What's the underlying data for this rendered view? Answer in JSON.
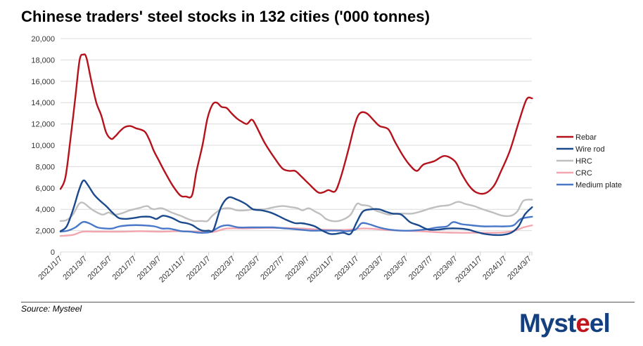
{
  "chart_data": {
    "type": "line",
    "title": "Chinese traders' steel stocks in 132 cities ('000 tonnes)",
    "xlabel": "",
    "ylabel": "",
    "ylim": [
      0,
      20000
    ],
    "yticks": [
      "0",
      "2,000",
      "4,000",
      "6,000",
      "8,000",
      "10,000",
      "12,000",
      "14,000",
      "16,000",
      "18,000",
      "20,000"
    ],
    "ytick_values": [
      0,
      2000,
      4000,
      6000,
      8000,
      10000,
      12000,
      14000,
      16000,
      18000,
      20000
    ],
    "xticks": [
      "2021/1/7",
      "2021/3/7",
      "2021/5/7",
      "2021/7/7",
      "2021/9/7",
      "2021/11/7",
      "2022/1/7",
      "2022/3/7",
      "2022/5/7",
      "2022/7/7",
      "2022/9/7",
      "2022/11/7",
      "2023/1/7",
      "2023/3/7",
      "2023/5/7",
      "2023/7/7",
      "2023/9/7",
      "2023/11/7",
      "2024/1/7",
      "2024/3/7"
    ],
    "x_axis_note": "x values expressed as months since 2021/1/7 (0 = 2021/1/7, 38 = 2024/3/7)",
    "x_range": [
      0,
      38.2
    ],
    "grid": true,
    "legend_position": "right",
    "series": [
      {
        "name": "Rebar",
        "color": "#b5121b",
        "x": [
          0,
          0.4,
          0.8,
          1.2,
          1.55,
          1.85,
          2.1,
          2.5,
          2.9,
          3.3,
          3.7,
          4.1,
          4.4,
          4.8,
          5.2,
          5.65,
          6.1,
          6.8,
          7.2,
          7.55,
          8.0,
          8.45,
          9.1,
          9.7,
          10.15,
          10.65,
          11.0,
          11.5,
          11.9,
          12.3,
          12.65,
          13.05,
          13.45,
          13.85,
          14.3,
          14.7,
          15.1,
          15.5,
          15.85,
          16.55,
          17.4,
          18.0,
          18.55,
          19.0,
          19.4,
          20.1,
          20.85,
          21.3,
          21.7,
          22.25,
          22.7,
          23.3,
          23.85,
          24.25,
          24.8,
          25.4,
          25.85,
          26.55,
          27.1,
          27.7,
          28.25,
          28.85,
          29.4,
          30.25,
          31.1,
          31.95,
          32.5,
          33.1,
          33.65,
          34.4,
          35.1,
          35.65,
          36.4,
          37.15,
          37.75,
          38.2
        ],
        "values": [
          5900,
          7000,
          10500,
          14500,
          18000,
          18500,
          18200,
          16000,
          14000,
          12800,
          11200,
          10600,
          10800,
          11300,
          11700,
          11800,
          11600,
          11300,
          10500,
          9500,
          8500,
          7500,
          6200,
          5300,
          5200,
          5300,
          7500,
          10000,
          12500,
          13800,
          14000,
          13600,
          13500,
          13000,
          12500,
          12200,
          12000,
          12400,
          11800,
          10200,
          8700,
          7800,
          7600,
          7600,
          7200,
          6400,
          5600,
          5600,
          5800,
          5700,
          7000,
          9500,
          12000,
          13000,
          13000,
          12300,
          11800,
          11500,
          10300,
          9100,
          8200,
          7600,
          8200,
          8500,
          9000,
          8500,
          7300,
          6200,
          5600,
          5500,
          6200,
          7500,
          9500,
          12300,
          14300,
          14400
        ]
      },
      {
        "name": "Wire rod",
        "color": "#1b4a8c",
        "x": [
          0,
          0.5,
          1.0,
          1.5,
          1.85,
          2.2,
          2.7,
          3.2,
          3.7,
          4.2,
          4.7,
          5.3,
          6.0,
          6.6,
          7.2,
          7.5,
          7.8,
          8.3,
          9.0,
          9.7,
          10.2,
          10.7,
          11.1,
          11.5,
          12.0,
          12.4,
          13.0,
          13.6,
          14.3,
          15.0,
          15.6,
          16.3,
          17.0,
          17.6,
          18.3,
          19.0,
          19.5,
          20.0,
          20.6,
          21.2,
          21.8,
          22.3,
          22.9,
          23.5,
          24.0,
          24.5,
          25.2,
          25.8,
          26.3,
          26.9,
          27.6,
          28.3,
          29.0,
          29.8,
          30.6,
          31.4,
          32.2,
          33.0,
          33.6,
          34.3,
          35.0,
          35.8,
          36.5,
          37.1,
          37.6,
          38.2
        ],
        "values": [
          1950,
          2400,
          3900,
          5800,
          6700,
          6300,
          5400,
          4800,
          4300,
          3700,
          3200,
          3100,
          3200,
          3300,
          3300,
          3200,
          3100,
          3400,
          3200,
          2800,
          2700,
          2500,
          2200,
          2000,
          2000,
          2100,
          4200,
          5100,
          4900,
          4500,
          4000,
          3900,
          3700,
          3400,
          3000,
          2700,
          2700,
          2600,
          2400,
          2000,
          1700,
          1700,
          1800,
          1700,
          2800,
          3800,
          4000,
          4000,
          3800,
          3600,
          3500,
          2800,
          2500,
          2100,
          2100,
          2200,
          2200,
          2100,
          1900,
          1700,
          1600,
          1600,
          1800,
          2400,
          3500,
          4200
        ]
      },
      {
        "name": "HRC",
        "color": "#bfbfbf",
        "x": [
          0,
          0.5,
          1.0,
          1.5,
          1.85,
          2.3,
          2.8,
          3.4,
          3.9,
          4.3,
          4.9,
          5.6,
          6.3,
          7.0,
          7.3,
          7.6,
          8.2,
          9.0,
          9.7,
          10.3,
          10.8,
          11.1,
          11.5,
          11.9,
          12.3,
          13.0,
          13.7,
          14.3,
          15.0,
          15.7,
          16.5,
          17.3,
          18.0,
          18.7,
          19.2,
          19.6,
          20.1,
          20.6,
          21.1,
          21.5,
          22.0,
          22.5,
          23.0,
          23.5,
          24.0,
          24.4,
          25.0,
          25.5,
          26.0,
          26.6,
          27.2,
          27.9,
          28.5,
          29.2,
          30.0,
          30.8,
          31.5,
          32.2,
          32.8,
          33.5,
          34.2,
          35.0,
          35.8,
          36.5,
          37.0,
          37.5,
          38.2
        ],
        "values": [
          2900,
          3000,
          3500,
          4500,
          4600,
          4200,
          3800,
          3500,
          3700,
          3500,
          3600,
          3900,
          4100,
          4300,
          4100,
          4000,
          4100,
          3700,
          3400,
          3100,
          2900,
          2900,
          2900,
          2900,
          3400,
          4000,
          4100,
          3900,
          3900,
          4000,
          4000,
          4200,
          4300,
          4200,
          4100,
          3900,
          4100,
          3800,
          3500,
          3100,
          2900,
          2900,
          3100,
          3500,
          4500,
          4400,
          4300,
          3900,
          3700,
          3500,
          3600,
          3600,
          3600,
          3800,
          4100,
          4300,
          4400,
          4700,
          4500,
          4300,
          4000,
          3700,
          3400,
          3400,
          3800,
          4800,
          4900
        ]
      },
      {
        "name": "CRC",
        "color": "#f4a6b0",
        "x": [
          0,
          1.0,
          1.8,
          2.8,
          3.8,
          5.0,
          6.5,
          8.0,
          9.5,
          11.0,
          11.8,
          12.5,
          13.5,
          15.0,
          16.5,
          18.0,
          19.5,
          21.0,
          22.5,
          23.5,
          24.5,
          25.5,
          26.5,
          27.5,
          29.0,
          30.5,
          32.0,
          33.5,
          35.0,
          36.0,
          36.8,
          37.5,
          38.2
        ],
        "values": [
          1500,
          1600,
          1900,
          1900,
          1900,
          1900,
          1950,
          1900,
          1950,
          1900,
          1850,
          1900,
          2200,
          2200,
          2250,
          2250,
          2200,
          2100,
          2050,
          2100,
          2200,
          2150,
          2050,
          2000,
          1950,
          1850,
          1800,
          1800,
          1800,
          1850,
          2000,
          2300,
          2500
        ]
      },
      {
        "name": "Medium plate",
        "color": "#4a78c9",
        "x": [
          0,
          0.6,
          1.2,
          1.8,
          2.3,
          3.0,
          3.7,
          4.2,
          4.8,
          5.6,
          6.6,
          7.6,
          8.2,
          8.7,
          9.2,
          9.8,
          10.5,
          11.2,
          11.7,
          12.2,
          13.0,
          13.6,
          14.4,
          15.3,
          16.2,
          17.2,
          18.3,
          19.3,
          20.2,
          21.0,
          21.8,
          22.6,
          23.2,
          23.9,
          24.4,
          25.0,
          25.8,
          26.6,
          27.5,
          28.5,
          29.5,
          30.5,
          31.3,
          31.8,
          32.5,
          33.3,
          34.2,
          35.2,
          36.0,
          36.7,
          37.3,
          38.2
        ],
        "values": [
          1900,
          2000,
          2300,
          2800,
          2700,
          2300,
          2200,
          2200,
          2400,
          2500,
          2500,
          2400,
          2200,
          2200,
          2100,
          1950,
          1900,
          1800,
          1800,
          1900,
          2400,
          2500,
          2300,
          2300,
          2300,
          2300,
          2200,
          2100,
          2000,
          2000,
          2000,
          2000,
          1950,
          2100,
          2700,
          2600,
          2300,
          2100,
          2000,
          2000,
          2100,
          2300,
          2400,
          2800,
          2600,
          2500,
          2400,
          2400,
          2400,
          2500,
          3100,
          3300
        ]
      }
    ]
  },
  "footer": {
    "source": "Source: Mysteel",
    "logo_main": "Myst",
    "logo_accent": "e",
    "logo_end": "el"
  }
}
